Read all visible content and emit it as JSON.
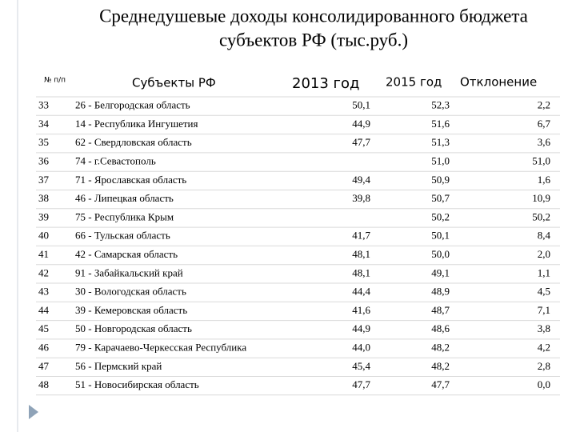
{
  "header": {
    "title_line1": "Среднедушевые доходы консолидированного бюджета",
    "title_line2": "субъектов РФ (тыс.руб.)"
  },
  "table": {
    "columns": [
      "№ п/п",
      "Субъекты РФ",
      "2013 год",
      "2015 год",
      "Отклонение"
    ],
    "rows": [
      [
        "33",
        "26 - Белгородская область",
        "50,1",
        "52,3",
        "2,2"
      ],
      [
        "34",
        "14 - Республика Ингушетия",
        "44,9",
        "51,6",
        "6,7"
      ],
      [
        "35",
        "62 - Свердловская область",
        "47,7",
        "51,3",
        "3,6"
      ],
      [
        "36",
        "74 - г.Севастополь",
        null,
        "51,0",
        "51,0"
      ],
      [
        "37",
        "71 - Ярославская область",
        "49,4",
        "50,9",
        "1,6"
      ],
      [
        "38",
        "46 - Липецкая область",
        "39,8",
        "50,7",
        "10,9"
      ],
      [
        "39",
        "75 - Республика Крым",
        null,
        "50,2",
        "50,2"
      ],
      [
        "40",
        "66 - Тульская область",
        "41,7",
        "50,1",
        "8,4"
      ],
      [
        "41",
        "42 - Самарская область",
        "48,1",
        "50,0",
        "2,0"
      ],
      [
        "42",
        "91 - Забайкальский край",
        "48,1",
        "49,1",
        "1,1"
      ],
      [
        "43",
        "30 - Вологодская область",
        "44,4",
        "48,9",
        "4,5"
      ],
      [
        "44",
        "39 - Кемеровская область",
        "41,6",
        "48,7",
        "7,1"
      ],
      [
        "45",
        "50 - Новгородская область",
        "44,9",
        "48,6",
        "3,8"
      ],
      [
        "46",
        "79 - Карачаево-Черкесская Республика",
        "44,0",
        "48,2",
        "4,2"
      ],
      [
        "47",
        "56 - Пермский край",
        "45,4",
        "48,2",
        "2,8"
      ],
      [
        "48",
        "51 - Новосибирская область",
        "47,7",
        "47,7",
        "0,0"
      ]
    ]
  }
}
